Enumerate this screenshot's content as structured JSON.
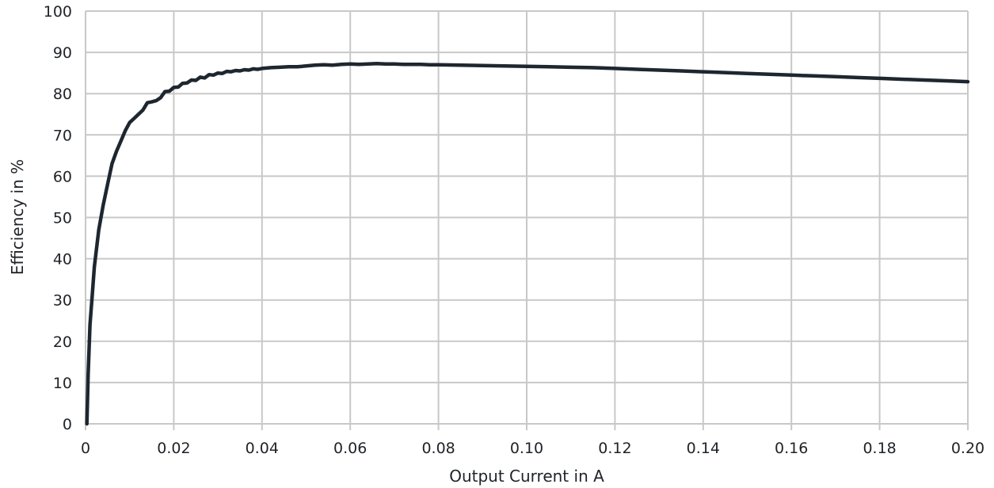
{
  "chart_data": {
    "type": "line",
    "title": "",
    "xlabel": "Output Current in A",
    "ylabel": "Efficiency in %",
    "xlim": [
      0,
      0.2
    ],
    "ylim": [
      0,
      100
    ],
    "grid": true,
    "x_ticks": [
      "0",
      "0.02",
      "0.04",
      "0.06",
      "0.08",
      "0.10",
      "0.12",
      "0.14",
      "0.16",
      "0.18",
      "0.20"
    ],
    "x_tick_values": [
      0,
      0.02,
      0.04,
      0.06,
      0.08,
      0.1,
      0.12,
      0.14,
      0.16,
      0.18,
      0.2
    ],
    "y_ticks": [
      "0",
      "10",
      "20",
      "30",
      "40",
      "50",
      "60",
      "70",
      "80",
      "90",
      "100"
    ],
    "y_tick_values": [
      0,
      10,
      20,
      30,
      40,
      50,
      60,
      70,
      80,
      90,
      100
    ],
    "series": [
      {
        "color": "#1e2730",
        "x": [
          0.0003,
          0.0006,
          0.001,
          0.0015,
          0.002,
          0.003,
          0.004,
          0.005,
          0.006,
          0.007,
          0.008,
          0.009,
          0.01,
          0.011,
          0.012,
          0.013,
          0.014,
          0.015,
          0.016,
          0.017,
          0.018,
          0.019,
          0.02,
          0.021,
          0.022,
          0.023,
          0.024,
          0.025,
          0.026,
          0.027,
          0.028,
          0.029,
          0.03,
          0.031,
          0.032,
          0.033,
          0.034,
          0.035,
          0.036,
          0.037,
          0.038,
          0.039,
          0.04,
          0.042,
          0.044,
          0.046,
          0.048,
          0.05,
          0.052,
          0.054,
          0.056,
          0.058,
          0.06,
          0.062,
          0.064,
          0.066,
          0.068,
          0.07,
          0.072,
          0.074,
          0.076,
          0.078,
          0.08,
          0.085,
          0.09,
          0.095,
          0.1,
          0.105,
          0.11,
          0.115,
          0.12,
          0.125,
          0.13,
          0.135,
          0.14,
          0.145,
          0.15,
          0.155,
          0.16,
          0.165,
          0.17,
          0.175,
          0.18,
          0.185,
          0.19,
          0.195,
          0.2
        ],
        "values": [
          0,
          12,
          24,
          31,
          38,
          47,
          53,
          58,
          63,
          66,
          68.5,
          71,
          73,
          74,
          75,
          76,
          77.8,
          78,
          78.3,
          79,
          80.5,
          80.6,
          81.5,
          81.6,
          82.5,
          82.6,
          83.3,
          83.2,
          84,
          83.8,
          84.6,
          84.5,
          85,
          84.9,
          85.4,
          85.3,
          85.6,
          85.5,
          85.8,
          85.7,
          86,
          85.9,
          86.1,
          86.3,
          86.4,
          86.5,
          86.5,
          86.7,
          86.9,
          87.0,
          86.9,
          87.1,
          87.2,
          87.1,
          87.2,
          87.3,
          87.2,
          87.2,
          87.1,
          87.1,
          87.1,
          87.0,
          87.0,
          86.9,
          86.8,
          86.7,
          86.6,
          86.5,
          86.4,
          86.3,
          86.1,
          85.9,
          85.7,
          85.5,
          85.3,
          85.1,
          84.9,
          84.7,
          84.5,
          84.3,
          84.1,
          83.9,
          83.7,
          83.5,
          83.3,
          83.1,
          82.9
        ]
      }
    ]
  }
}
